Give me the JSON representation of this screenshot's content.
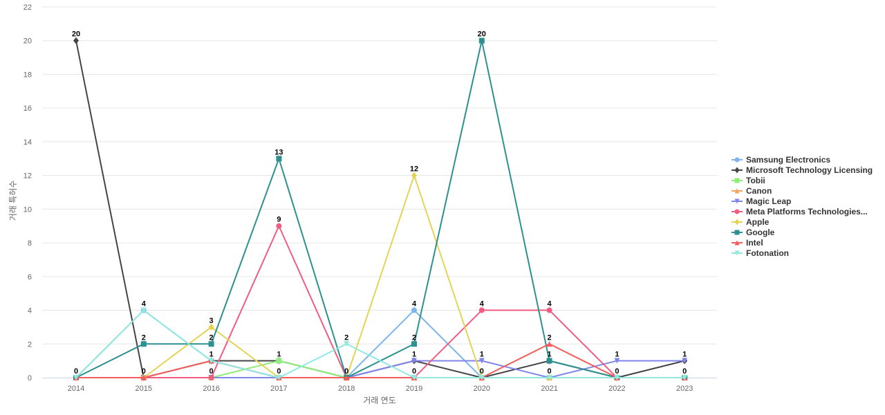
{
  "chart_data": {
    "type": "line",
    "title": "",
    "xlabel": "거래 연도",
    "ylabel": "거래 특허수",
    "x": [
      "2014",
      "2015",
      "2016",
      "2017",
      "2018",
      "2019",
      "2020",
      "2021",
      "2022",
      "2023"
    ],
    "y_ticks": [
      0,
      2,
      4,
      6,
      8,
      10,
      12,
      14,
      16,
      18,
      20,
      22
    ],
    "ylim": [
      0,
      22
    ],
    "grid": true,
    "legend_position": "right",
    "series": [
      {
        "name": "Samsung Electronics",
        "color": "#7cb5ec",
        "marker": "circle",
        "values": [
          0,
          4,
          1,
          0,
          0,
          4,
          0,
          0,
          0,
          0
        ]
      },
      {
        "name": "Microsoft Technology Licensing",
        "color": "#434348",
        "marker": "diamond",
        "values": [
          20,
          0,
          1,
          1,
          0,
          1,
          0,
          1,
          0,
          1
        ]
      },
      {
        "name": "Tobii",
        "color": "#90ed7d",
        "marker": "square",
        "values": [
          0,
          0,
          0,
          1,
          0,
          0,
          0,
          0,
          0,
          0
        ]
      },
      {
        "name": "Canon",
        "color": "#f7a35c",
        "marker": "triangle",
        "values": [
          0,
          0,
          0,
          0,
          0,
          0,
          0,
          0,
          0,
          0
        ]
      },
      {
        "name": "Magic Leap",
        "color": "#8085e9",
        "marker": "triangle-down",
        "values": [
          0,
          0,
          0,
          0,
          0,
          1,
          1,
          0,
          1,
          1
        ]
      },
      {
        "name": "Meta Platforms Technologies...",
        "color": "#f15c80",
        "marker": "circle",
        "values": [
          0,
          0,
          0,
          9,
          0,
          0,
          4,
          4,
          0,
          0
        ]
      },
      {
        "name": "Apple",
        "color": "#e4d354",
        "marker": "diamond",
        "values": [
          0,
          0,
          3,
          0,
          0,
          12,
          0,
          0,
          0,
          0
        ]
      },
      {
        "name": "Google",
        "color": "#2b908f",
        "marker": "square",
        "values": [
          0,
          2,
          2,
          13,
          0,
          2,
          20,
          1,
          0,
          0
        ]
      },
      {
        "name": "Intel",
        "color": "#f45b5b",
        "marker": "triangle",
        "values": [
          0,
          0,
          1,
          0,
          0,
          0,
          0,
          2,
          0,
          0
        ]
      },
      {
        "name": "Fotonation",
        "color": "#91e8e1",
        "marker": "triangle-down",
        "values": [
          0,
          4,
          1,
          0,
          2,
          0,
          0,
          0,
          0,
          0
        ]
      }
    ],
    "data_labels": [
      {
        "x_index": 0,
        "series": 1,
        "text": "20"
      },
      {
        "x_index": 0,
        "series": 0,
        "text": "0"
      },
      {
        "x_index": 1,
        "series": 0,
        "text": "4"
      },
      {
        "x_index": 1,
        "series": 7,
        "text": "2"
      },
      {
        "x_index": 1,
        "series": 1,
        "text": "0"
      },
      {
        "x_index": 2,
        "series": 6,
        "text": "3"
      },
      {
        "x_index": 2,
        "series": 7,
        "text": "2"
      },
      {
        "x_index": 2,
        "series": 0,
        "text": "1"
      },
      {
        "x_index": 2,
        "series": 2,
        "text": "0"
      },
      {
        "x_index": 3,
        "series": 7,
        "text": "13"
      },
      {
        "x_index": 3,
        "series": 5,
        "text": "9"
      },
      {
        "x_index": 3,
        "series": 2,
        "text": "1"
      },
      {
        "x_index": 3,
        "series": 0,
        "text": "0"
      },
      {
        "x_index": 4,
        "series": 9,
        "text": "2"
      },
      {
        "x_index": 4,
        "series": 0,
        "text": "0"
      },
      {
        "x_index": 5,
        "series": 6,
        "text": "12"
      },
      {
        "x_index": 5,
        "series": 0,
        "text": "4"
      },
      {
        "x_index": 5,
        "series": 7,
        "text": "2"
      },
      {
        "x_index": 5,
        "series": 1,
        "text": "1"
      },
      {
        "x_index": 5,
        "series": 5,
        "text": "0"
      },
      {
        "x_index": 6,
        "series": 7,
        "text": "20"
      },
      {
        "x_index": 6,
        "series": 5,
        "text": "4"
      },
      {
        "x_index": 6,
        "series": 4,
        "text": "1"
      },
      {
        "x_index": 6,
        "series": 0,
        "text": "0"
      },
      {
        "x_index": 7,
        "series": 5,
        "text": "4"
      },
      {
        "x_index": 7,
        "series": 8,
        "text": "2"
      },
      {
        "x_index": 7,
        "series": 7,
        "text": "1"
      },
      {
        "x_index": 7,
        "series": 0,
        "text": "0"
      },
      {
        "x_index": 8,
        "series": 4,
        "text": "1"
      },
      {
        "x_index": 8,
        "series": 0,
        "text": "0"
      },
      {
        "x_index": 9,
        "series": 1,
        "text": "1"
      },
      {
        "x_index": 9,
        "series": 0,
        "text": "0"
      }
    ]
  }
}
